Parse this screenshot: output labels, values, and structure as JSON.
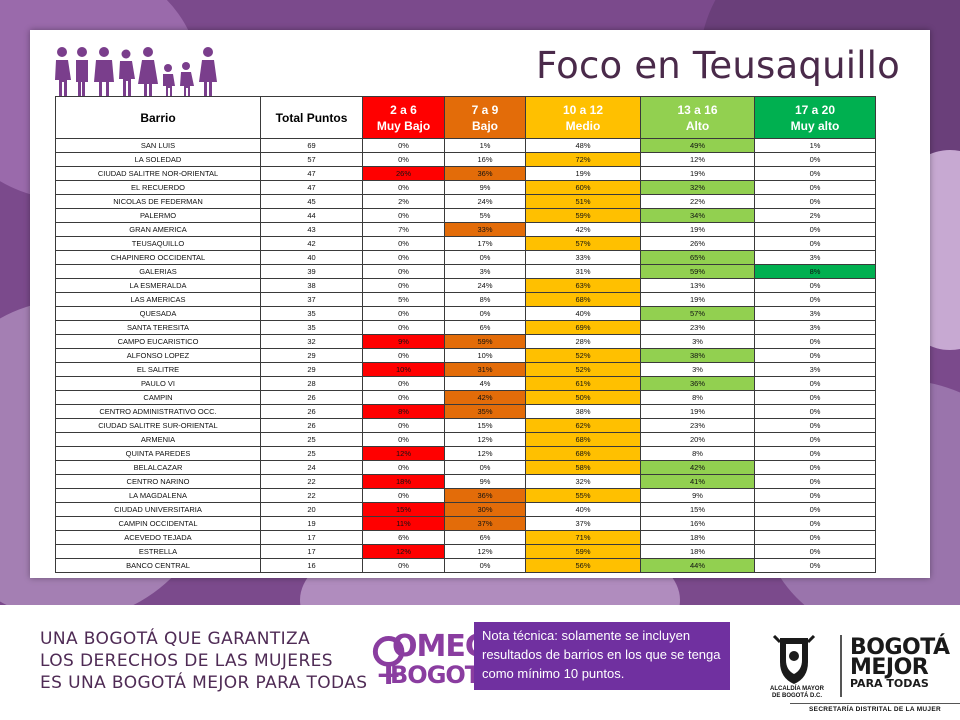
{
  "title": "Foco en Teusaquillo",
  "headers": {
    "barrio": "Barrio",
    "total": "Total Puntos",
    "muy_bajo": [
      "2 a 6",
      "Muy Bajo"
    ],
    "bajo": [
      "7 a 9",
      "Bajo"
    ],
    "medio": [
      "10 a 12",
      "Medio"
    ],
    "alto": [
      "13 a 16",
      "Alto"
    ],
    "muy_alto": [
      "17 a 20",
      "Muy alto"
    ]
  },
  "colors": {
    "muy_bajo": "#ff0000",
    "bajo": "#e36c09",
    "medio": "#ffc000",
    "alto": "#92d050",
    "muy_alto": "#00b050",
    "purple": "#7030a0"
  },
  "rows": [
    {
      "barrio": "SAN LUIS",
      "total": "69",
      "v": [
        "0%",
        "1%",
        "48%",
        "49%",
        "1%"
      ],
      "hl": [
        null,
        null,
        null,
        "alto",
        null
      ]
    },
    {
      "barrio": "LA SOLEDAD",
      "total": "57",
      "v": [
        "0%",
        "16%",
        "72%",
        "12%",
        "0%"
      ],
      "hl": [
        null,
        null,
        "medio",
        null,
        null
      ]
    },
    {
      "barrio": "CIUDAD SALITRE NOR-ORIENTAL",
      "total": "47",
      "v": [
        "26%",
        "36%",
        "19%",
        "19%",
        "0%"
      ],
      "hl": [
        "muy_bajo",
        "bajo",
        null,
        null,
        null
      ]
    },
    {
      "barrio": "EL RECUERDO",
      "total": "47",
      "v": [
        "0%",
        "9%",
        "60%",
        "32%",
        "0%"
      ],
      "hl": [
        null,
        null,
        "medio",
        "alto",
        null
      ]
    },
    {
      "barrio": "NICOLAS DE FEDERMAN",
      "total": "45",
      "v": [
        "2%",
        "24%",
        "51%",
        "22%",
        "0%"
      ],
      "hl": [
        null,
        null,
        "medio",
        null,
        null
      ]
    },
    {
      "barrio": "PALERMO",
      "total": "44",
      "v": [
        "0%",
        "5%",
        "59%",
        "34%",
        "2%"
      ],
      "hl": [
        null,
        null,
        "medio",
        "alto",
        null
      ]
    },
    {
      "barrio": "GRAN AMERICA",
      "total": "43",
      "v": [
        "7%",
        "33%",
        "42%",
        "19%",
        "0%"
      ],
      "hl": [
        null,
        "bajo",
        null,
        null,
        null
      ]
    },
    {
      "barrio": "TEUSAQUILLO",
      "total": "42",
      "v": [
        "0%",
        "17%",
        "57%",
        "26%",
        "0%"
      ],
      "hl": [
        null,
        null,
        "medio",
        null,
        null
      ]
    },
    {
      "barrio": "CHAPINERO OCCIDENTAL",
      "total": "40",
      "v": [
        "0%",
        "0%",
        "33%",
        "65%",
        "3%"
      ],
      "hl": [
        null,
        null,
        null,
        "alto",
        null
      ]
    },
    {
      "barrio": "GALERIAS",
      "total": "39",
      "v": [
        "0%",
        "3%",
        "31%",
        "59%",
        "8%"
      ],
      "hl": [
        null,
        null,
        null,
        "alto",
        "muy_alto"
      ]
    },
    {
      "barrio": "LA ESMERALDA",
      "total": "38",
      "v": [
        "0%",
        "24%",
        "63%",
        "13%",
        "0%"
      ],
      "hl": [
        null,
        null,
        "medio",
        null,
        null
      ]
    },
    {
      "barrio": "LAS AMERICAS",
      "total": "37",
      "v": [
        "5%",
        "8%",
        "68%",
        "19%",
        "0%"
      ],
      "hl": [
        null,
        null,
        "medio",
        null,
        null
      ]
    },
    {
      "barrio": "QUESADA",
      "total": "35",
      "v": [
        "0%",
        "0%",
        "40%",
        "57%",
        "3%"
      ],
      "hl": [
        null,
        null,
        null,
        "alto",
        null
      ]
    },
    {
      "barrio": "SANTA TERESITA",
      "total": "35",
      "v": [
        "0%",
        "6%",
        "69%",
        "23%",
        "3%"
      ],
      "hl": [
        null,
        null,
        "medio",
        null,
        null
      ]
    },
    {
      "barrio": "CAMPO EUCARISTICO",
      "total": "32",
      "v": [
        "9%",
        "59%",
        "28%",
        "3%",
        "0%"
      ],
      "hl": [
        "muy_bajo",
        "bajo",
        null,
        null,
        null
      ]
    },
    {
      "barrio": "ALFONSO LOPEZ",
      "total": "29",
      "v": [
        "0%",
        "10%",
        "52%",
        "38%",
        "0%"
      ],
      "hl": [
        null,
        null,
        "medio",
        "alto",
        null
      ]
    },
    {
      "barrio": "EL SALITRE",
      "total": "29",
      "v": [
        "10%",
        "31%",
        "52%",
        "3%",
        "3%"
      ],
      "hl": [
        "muy_bajo",
        "bajo",
        "medio",
        null,
        null
      ]
    },
    {
      "barrio": "PAULO VI",
      "total": "28",
      "v": [
        "0%",
        "4%",
        "61%",
        "36%",
        "0%"
      ],
      "hl": [
        null,
        null,
        "medio",
        "alto",
        null
      ]
    },
    {
      "barrio": "CAMPIN",
      "total": "26",
      "v": [
        "0%",
        "42%",
        "50%",
        "8%",
        "0%"
      ],
      "hl": [
        null,
        "bajo",
        "medio",
        null,
        null
      ]
    },
    {
      "barrio": "CENTRO ADMINISTRATIVO OCC.",
      "total": "26",
      "v": [
        "8%",
        "35%",
        "38%",
        "19%",
        "0%"
      ],
      "hl": [
        "muy_bajo",
        "bajo",
        null,
        null,
        null
      ]
    },
    {
      "barrio": "CIUDAD SALITRE SUR-ORIENTAL",
      "total": "26",
      "v": [
        "0%",
        "15%",
        "62%",
        "23%",
        "0%"
      ],
      "hl": [
        null,
        null,
        "medio",
        null,
        null
      ]
    },
    {
      "barrio": "ARMENIA",
      "total": "25",
      "v": [
        "0%",
        "12%",
        "68%",
        "20%",
        "0%"
      ],
      "hl": [
        null,
        null,
        "medio",
        null,
        null
      ]
    },
    {
      "barrio": "QUINTA PAREDES",
      "total": "25",
      "v": [
        "12%",
        "12%",
        "68%",
        "8%",
        "0%"
      ],
      "hl": [
        "muy_bajo",
        null,
        "medio",
        null,
        null
      ]
    },
    {
      "barrio": "BELALCAZAR",
      "total": "24",
      "v": [
        "0%",
        "0%",
        "58%",
        "42%",
        "0%"
      ],
      "hl": [
        null,
        null,
        "medio",
        "alto",
        null
      ]
    },
    {
      "barrio": "CENTRO NARINO",
      "total": "22",
      "v": [
        "18%",
        "9%",
        "32%",
        "41%",
        "0%"
      ],
      "hl": [
        "muy_bajo",
        null,
        null,
        "alto",
        null
      ]
    },
    {
      "barrio": "LA MAGDALENA",
      "total": "22",
      "v": [
        "0%",
        "36%",
        "55%",
        "9%",
        "0%"
      ],
      "hl": [
        null,
        "bajo",
        "medio",
        null,
        null
      ]
    },
    {
      "barrio": "CIUDAD UNIVERSITARIA",
      "total": "20",
      "v": [
        "15%",
        "30%",
        "40%",
        "15%",
        "0%"
      ],
      "hl": [
        "muy_bajo",
        "bajo",
        null,
        null,
        null
      ]
    },
    {
      "barrio": "CAMPIN OCCIDENTAL",
      "total": "19",
      "v": [
        "11%",
        "37%",
        "37%",
        "16%",
        "0%"
      ],
      "hl": [
        "muy_bajo",
        "bajo",
        null,
        null,
        null
      ]
    },
    {
      "barrio": "ACEVEDO TEJADA",
      "total": "17",
      "v": [
        "6%",
        "6%",
        "71%",
        "18%",
        "0%"
      ],
      "hl": [
        null,
        null,
        "medio",
        null,
        null
      ]
    },
    {
      "barrio": "ESTRELLA",
      "total": "17",
      "v": [
        "12%",
        "12%",
        "59%",
        "18%",
        "0%"
      ],
      "hl": [
        "muy_bajo",
        null,
        "medio",
        null,
        null
      ]
    },
    {
      "barrio": "BANCO CENTRAL",
      "total": "16",
      "v": [
        "0%",
        "0%",
        "56%",
        "44%",
        "0%"
      ],
      "hl": [
        null,
        null,
        "medio",
        "alto",
        null
      ]
    }
  ],
  "footer": {
    "slogan": [
      "UNA BOGOTÁ QUE GARANTIZA",
      "LOS DERECHOS DE LAS MUJERES",
      "ES UNA BOGOTÁ MEJOR PARA TODAS"
    ],
    "omeg": [
      "OMEG",
      "BOGOTÁ"
    ],
    "note": "Nota técnica: solamente se incluyen resultados de barrios en los que se tenga como mínimo 10 puntos.",
    "alcaldia": [
      "ALCALDÍA MAYOR",
      "DE BOGOTÁ D.C."
    ],
    "bogota_logo": [
      "BOGOTÁ",
      "MEJOR",
      "PARA TODAS"
    ],
    "secretaria": "SECRETARÍA DISTRITAL DE LA MUJER"
  }
}
